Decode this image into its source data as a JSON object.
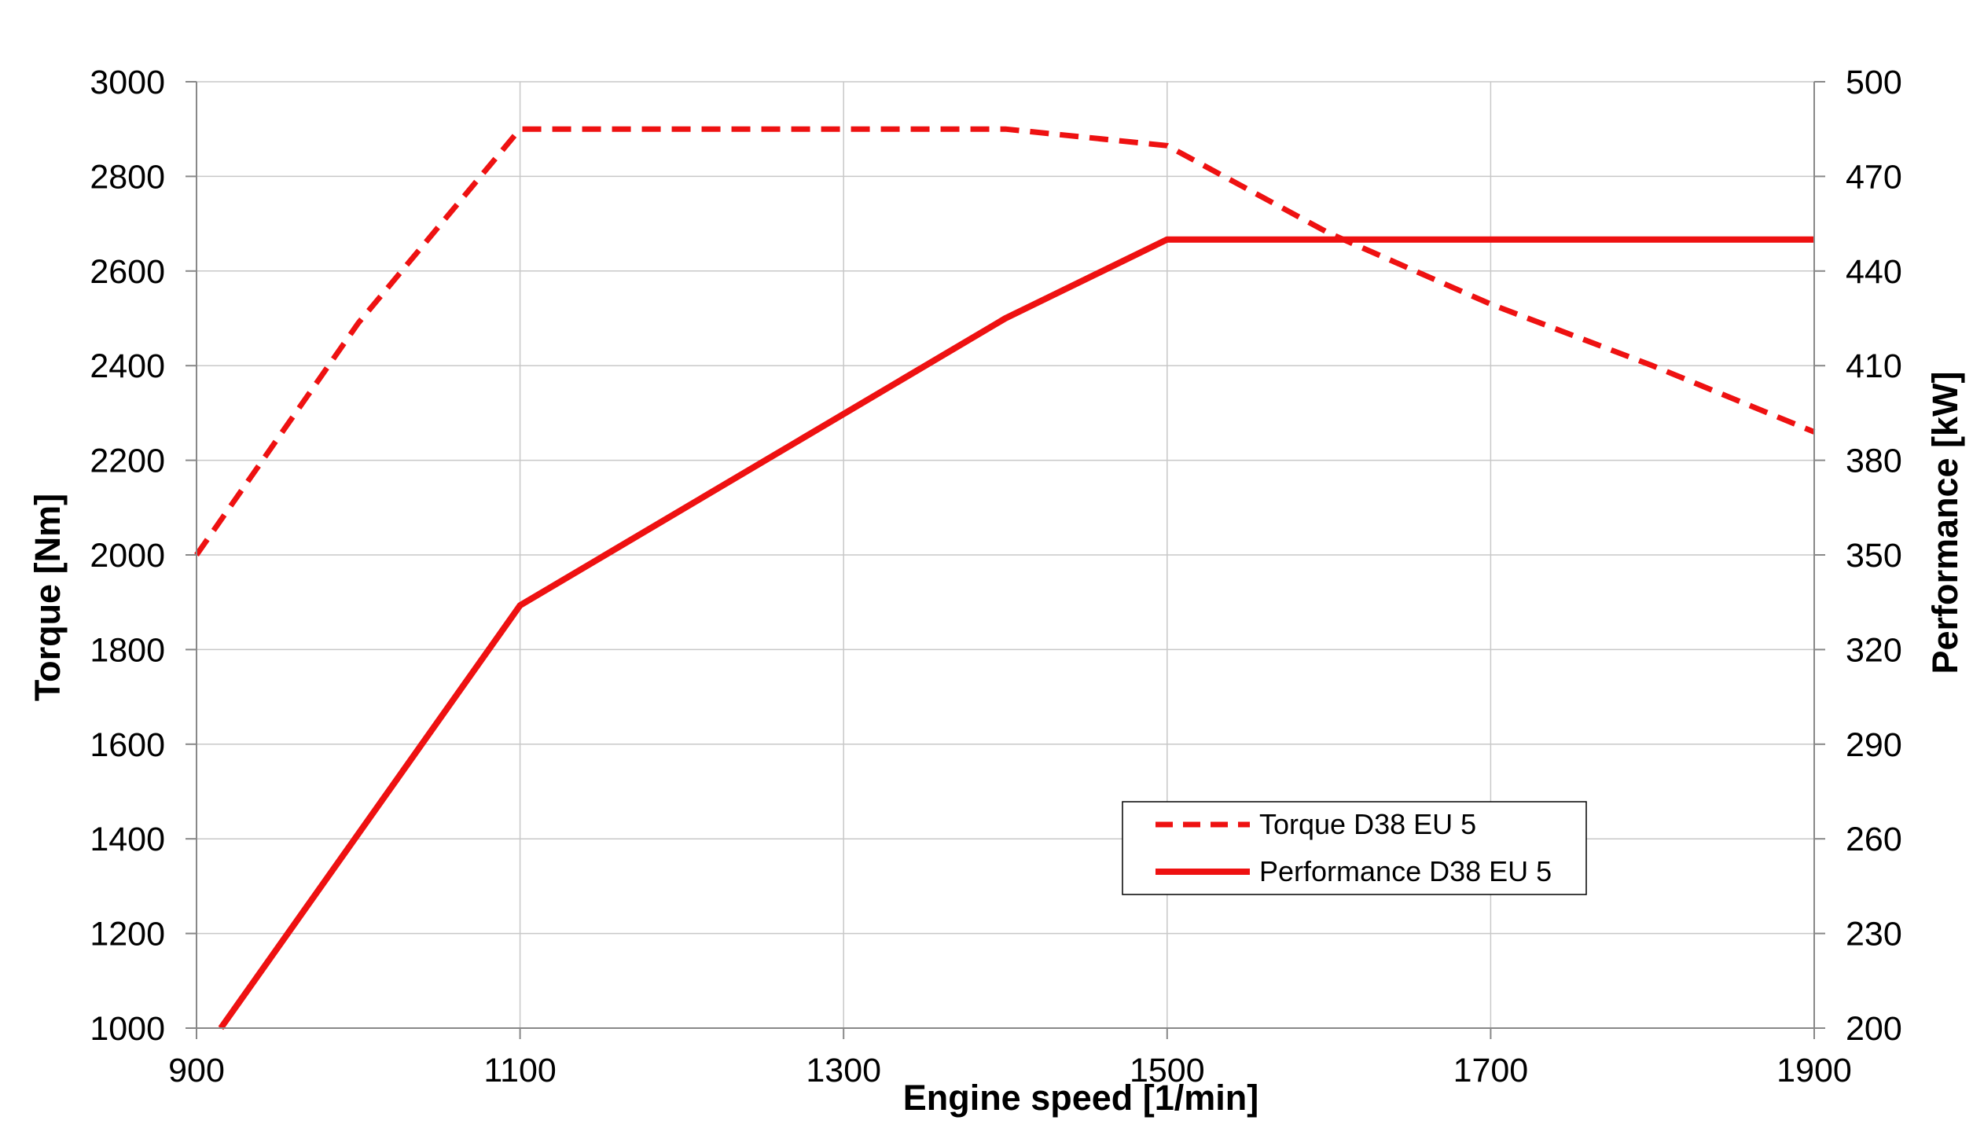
{
  "chart_data": {
    "type": "line",
    "xlabel": "Engine speed [1/min]",
    "ylabel_left": "Torque [Nm]",
    "ylabel_right": "Performance [kW]",
    "xlim": [
      900,
      1900
    ],
    "x_ticks": [
      900,
      1100,
      1300,
      1500,
      1700,
      1900
    ],
    "ylim_left": [
      1000,
      3000
    ],
    "y_ticks_left": [
      1000,
      1200,
      1400,
      1600,
      1800,
      2000,
      2200,
      2400,
      2600,
      2800,
      3000
    ],
    "ylim_right": [
      200,
      500
    ],
    "y_ticks_right": [
      200,
      230,
      260,
      290,
      320,
      350,
      380,
      410,
      440,
      470,
      500
    ],
    "grid": true,
    "legend_position": "center-right",
    "color": "#ee1111",
    "series": [
      {
        "name": "Torque D38 EU 5",
        "axis": "left",
        "style": "dashed",
        "x": [
          900,
          1000,
          1100,
          1400,
          1500,
          1600,
          1700,
          1800,
          1900
        ],
        "y": [
          2000,
          2490,
          2900,
          2900,
          2865,
          2680,
          2530,
          2400,
          2260
        ]
      },
      {
        "name": "Performance D38 EU 5",
        "axis": "right",
        "style": "solid",
        "x": [
          915,
          1100,
          1400,
          1500,
          1900
        ],
        "y": [
          200,
          334,
          425,
          450,
          450
        ]
      }
    ]
  }
}
